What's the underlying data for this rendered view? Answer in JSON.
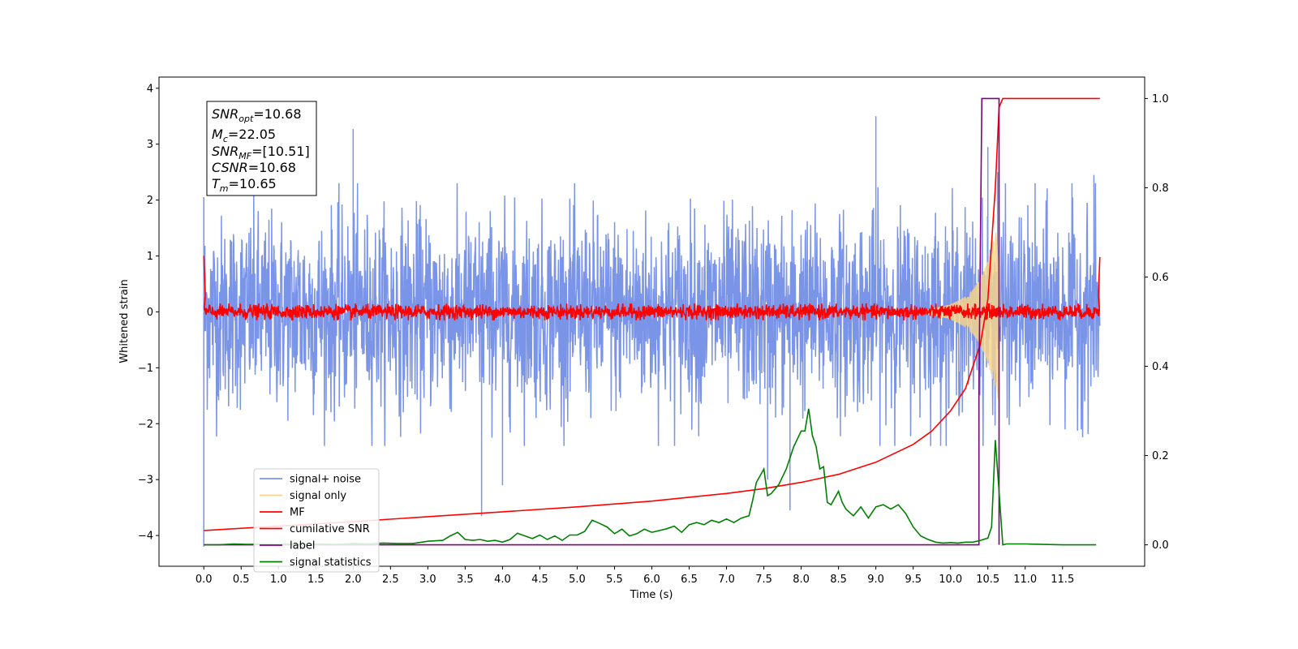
{
  "chart_data": {
    "type": "line",
    "xlabel": "Time (s)",
    "ylabel": "Whitened strain",
    "xlim": [
      -0.6,
      12.6
    ],
    "ylim": [
      -4.55,
      4.2
    ],
    "y2lim": [
      -0.048,
      1.048
    ],
    "x_ticks": [
      "0.0",
      "0.5",
      "1.0",
      "1.5",
      "2.0",
      "2.5",
      "3.0",
      "3.5",
      "4.0",
      "4.5",
      "5.0",
      "5.5",
      "6.0",
      "6.5",
      "7.0",
      "7.5",
      "8.0",
      "8.5",
      "9.0",
      "9.5",
      "10.0",
      "10.5",
      "11.0",
      "11.5"
    ],
    "y_ticks": [
      "4",
      "3",
      "2",
      "1",
      "0",
      "−1",
      "−2",
      "−3",
      "−4"
    ],
    "y2_ticks": [
      "1.0",
      "0.8",
      "0.6",
      "0.4",
      "0.2",
      "0.0"
    ],
    "grid": false,
    "legend_position": "lower-left",
    "legend": [
      {
        "label": "signal+ noise",
        "color": "#7a94e8"
      },
      {
        "label": "signal only",
        "color": "#f6d38c"
      },
      {
        "label": "MF",
        "color": "#ff0000"
      },
      {
        "label": "cumilative SNR",
        "color": "#ff0000"
      },
      {
        "label": "label",
        "color": "#800080"
      },
      {
        "label": "signal statistics",
        "color": "#008000"
      }
    ],
    "annotation": {
      "snr_opt": {
        "sym": "SNR",
        "sub": "opt",
        "value": "=10.68"
      },
      "mc": {
        "sym": "M",
        "sub": "c",
        "value": "=22.05"
      },
      "snr_mf": {
        "sym": "SNR",
        "sub": "MF",
        "value": "=[10.51]"
      },
      "csnr": {
        "sym": "CSNR",
        "sub": "",
        "value": "=10.68"
      },
      "tm": {
        "sym": "T",
        "sub": "m",
        "value": "=10.65"
      }
    },
    "series": [
      {
        "name": "signal+ noise",
        "axis": "left",
        "kind": "noise_band",
        "color": "#7a94e8",
        "x_range": [
          0.0,
          12.0
        ],
        "envelope_min": -2.4,
        "envelope_max": 2.3,
        "extreme_spikes": [
          [
            0.0,
            -4.2
          ],
          [
            0.0,
            2.05
          ],
          [
            2.0,
            3.27
          ],
          [
            3.72,
            -3.65
          ],
          [
            4.0,
            -3.1
          ],
          [
            7.55,
            -3.0
          ],
          [
            7.85,
            -3.55
          ],
          [
            9.0,
            3.5
          ],
          [
            10.5,
            2.95
          ],
          [
            10.63,
            2.5
          ],
          [
            11.92,
            2.45
          ]
        ]
      },
      {
        "name": "signal only",
        "axis": "left",
        "kind": "chirp",
        "color": "#f6d38c",
        "x": [
          9.7,
          9.9,
          10.0,
          10.1,
          10.2,
          10.3,
          10.4,
          10.5,
          10.6,
          10.65
        ],
        "amplitude": [
          0.05,
          0.1,
          0.14,
          0.2,
          0.28,
          0.4,
          0.6,
          0.9,
          1.4,
          1.6
        ]
      },
      {
        "name": "MF",
        "axis": "left",
        "kind": "noise_band",
        "color": "#ff0000",
        "x_range": [
          0.0,
          12.0
        ],
        "envelope_min": -0.15,
        "envelope_max": 0.15,
        "edge_points": [
          [
            0.0,
            1.0
          ],
          [
            0.02,
            0.3
          ],
          [
            11.98,
            0.3
          ],
          [
            12.0,
            0.98
          ]
        ]
      },
      {
        "name": "cumilative SNR",
        "axis": "right",
        "x": [
          0.0,
          1.0,
          2.0,
          3.0,
          4.0,
          5.0,
          6.0,
          7.0,
          7.5,
          8.0,
          8.5,
          9.0,
          9.5,
          9.75,
          10.0,
          10.2,
          10.4,
          10.5,
          10.6,
          10.65,
          10.7,
          11.0,
          11.5,
          12.0
        ],
        "y": [
          0.032,
          0.042,
          0.052,
          0.063,
          0.074,
          0.085,
          0.098,
          0.115,
          0.126,
          0.14,
          0.158,
          0.185,
          0.225,
          0.255,
          0.3,
          0.35,
          0.45,
          0.55,
          0.8,
          0.98,
          1.0,
          1.0,
          1.0,
          1.0
        ]
      },
      {
        "name": "label",
        "axis": "right",
        "x": [
          0.0,
          10.38,
          10.38,
          10.42,
          10.42,
          10.6,
          10.6,
          10.65,
          10.65,
          10.65
        ],
        "y": [
          0.0,
          0.0,
          0.35,
          1.0,
          1.0,
          1.0,
          1.0,
          1.0,
          0.0,
          0.0
        ]
      },
      {
        "name": "signal statistics",
        "axis": "right",
        "x": [
          0.0,
          0.2,
          0.4,
          0.6,
          0.8,
          1.0,
          1.2,
          1.4,
          1.6,
          1.8,
          2.0,
          2.2,
          2.4,
          2.6,
          2.8,
          3.0,
          3.2,
          3.3,
          3.4,
          3.5,
          3.6,
          3.7,
          3.8,
          3.9,
          4.0,
          4.1,
          4.2,
          4.3,
          4.4,
          4.5,
          4.6,
          4.7,
          4.8,
          4.9,
          5.0,
          5.1,
          5.2,
          5.3,
          5.4,
          5.5,
          5.6,
          5.7,
          5.8,
          5.9,
          6.0,
          6.1,
          6.2,
          6.3,
          6.4,
          6.5,
          6.6,
          6.7,
          6.8,
          6.9,
          7.0,
          7.1,
          7.2,
          7.3,
          7.35,
          7.4,
          7.5,
          7.55,
          7.6,
          7.7,
          7.8,
          7.9,
          8.0,
          8.05,
          8.1,
          8.15,
          8.2,
          8.25,
          8.3,
          8.35,
          8.4,
          8.5,
          8.55,
          8.6,
          8.7,
          8.8,
          8.9,
          9.0,
          9.1,
          9.2,
          9.3,
          9.4,
          9.5,
          9.6,
          9.7,
          9.8,
          9.9,
          10.0,
          10.1,
          10.2,
          10.3,
          10.4,
          10.5,
          10.55,
          10.6,
          10.65,
          10.7,
          10.75,
          10.8,
          11.0,
          11.5,
          11.95
        ],
        "y": [
          0.0,
          0.0,
          0.002,
          0.001,
          0.002,
          0.001,
          0.002,
          0.001,
          0.002,
          0.001,
          0.003,
          0.002,
          0.004,
          0.003,
          0.003,
          0.008,
          0.01,
          0.02,
          0.028,
          0.012,
          0.01,
          0.012,
          0.008,
          0.01,
          0.006,
          0.012,
          0.026,
          0.02,
          0.014,
          0.022,
          0.012,
          0.02,
          0.01,
          0.022,
          0.022,
          0.03,
          0.055,
          0.048,
          0.04,
          0.025,
          0.035,
          0.02,
          0.025,
          0.035,
          0.028,
          0.032,
          0.036,
          0.042,
          0.028,
          0.045,
          0.05,
          0.045,
          0.055,
          0.05,
          0.058,
          0.05,
          0.06,
          0.065,
          0.1,
          0.14,
          0.17,
          0.11,
          0.115,
          0.135,
          0.17,
          0.22,
          0.255,
          0.255,
          0.305,
          0.245,
          0.22,
          0.17,
          0.175,
          0.095,
          0.09,
          0.12,
          0.095,
          0.08,
          0.065,
          0.085,
          0.06,
          0.085,
          0.09,
          0.08,
          0.09,
          0.07,
          0.04,
          0.02,
          0.012,
          0.006,
          0.004,
          0.005,
          0.004,
          0.006,
          0.006,
          0.01,
          0.015,
          0.04,
          0.235,
          0.12,
          0.0,
          0.002,
          0.002,
          0.002,
          0.0,
          0.0
        ]
      }
    ]
  }
}
